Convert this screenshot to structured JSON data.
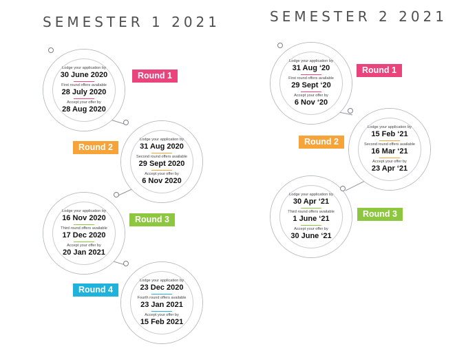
{
  "semesters": [
    {
      "title": "SEMESTER 1 2021",
      "rounds": [
        {
          "label": "Round 1",
          "color": "#e9457c",
          "items": [
            {
              "caption": "Lodge your application by",
              "date": "30 June 2020"
            },
            {
              "caption": "First round offers available",
              "date": "28 July 2020"
            },
            {
              "caption": "Accept your offer by",
              "date": "28 Aug 2020"
            }
          ]
        },
        {
          "label": "Round 2",
          "color": "#f6a43a",
          "items": [
            {
              "caption": "Lodge your application by",
              "date": "31 Aug 2020"
            },
            {
              "caption": "Second round offers available",
              "date": "29 Sept 2020"
            },
            {
              "caption": "Accept your offer by",
              "date": "6 Nov 2020"
            }
          ]
        },
        {
          "label": "Round 3",
          "color": "#8dc63f",
          "items": [
            {
              "caption": "Lodge your application by",
              "date": "16 Nov 2020"
            },
            {
              "caption": "Third round offers available",
              "date": "17 Dec 2020"
            },
            {
              "caption": "Accept your offer by",
              "date": "20 Jan 2021"
            }
          ]
        },
        {
          "label": "Round 4",
          "color": "#1fb3dc",
          "items": [
            {
              "caption": "Lodge your application by",
              "date": "23 Dec 2020"
            },
            {
              "caption": "Fourth round offers available",
              "date": "23 Jan 2021"
            },
            {
              "caption": "Accept your offer by",
              "date": "15 Feb 2021"
            }
          ]
        }
      ]
    },
    {
      "title": "SEMESTER 2 2021",
      "rounds": [
        {
          "label": "Round 1",
          "color": "#e9457c",
          "items": [
            {
              "caption": "Lodge your application by",
              "date": "31 Aug ‘20"
            },
            {
              "caption": "First round offers available",
              "date": "29 Sept ‘20"
            },
            {
              "caption": "Accept your offer by",
              "date": "6 Nov ‘20"
            }
          ]
        },
        {
          "label": "Round 2",
          "color": "#f6a43a",
          "items": [
            {
              "caption": "Lodge your application by",
              "date": "15 Feb ‘21"
            },
            {
              "caption": "Second round offers available",
              "date": "16 Mar ‘21"
            },
            {
              "caption": "Accept your offer by",
              "date": "23 Apr ‘21"
            }
          ]
        },
        {
          "label": "Round 3",
          "color": "#8dc63f",
          "items": [
            {
              "caption": "Lodge your application by",
              "date": "30 Apr ‘21"
            },
            {
              "caption": "Third round offers available",
              "date": "1 June ‘21"
            },
            {
              "caption": "Accept your offer by",
              "date": "30 June ‘21"
            }
          ]
        }
      ]
    }
  ]
}
